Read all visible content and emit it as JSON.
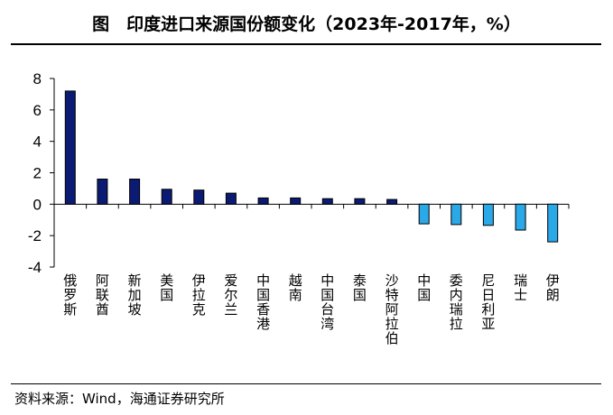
{
  "header": {
    "title": "图　印度进口来源国份额变化（2023年-2017年，%）"
  },
  "footer": {
    "source": "资料来源：Wind，海通证券研究所"
  },
  "chart_data": {
    "type": "bar",
    "title": "图　印度进口来源国份额变化（2023年-2017年，%）",
    "xlabel": "",
    "ylabel": "",
    "ylim": [
      -4,
      8
    ],
    "yticks": [
      8,
      6,
      4,
      2,
      0,
      -2,
      -4
    ],
    "grid": false,
    "legend": "none",
    "categories": [
      "俄罗斯",
      "阿联酋",
      "新加坡",
      "美国",
      "伊拉克",
      "爱尔兰",
      "中国香港",
      "越南",
      "中国台湾",
      "泰国",
      "沙特阿拉伯",
      "中国",
      "委内瑞拉",
      "尼日利亚",
      "瑞士",
      "伊朗"
    ],
    "values": [
      7.2,
      1.6,
      1.6,
      0.95,
      0.9,
      0.7,
      0.4,
      0.4,
      0.35,
      0.35,
      0.3,
      -1.25,
      -1.3,
      -1.35,
      -1.65,
      -2.4
    ],
    "colors": {
      "positive": "#0b1a73",
      "negative": "#2aa8e8",
      "outline": "#000000"
    }
  }
}
